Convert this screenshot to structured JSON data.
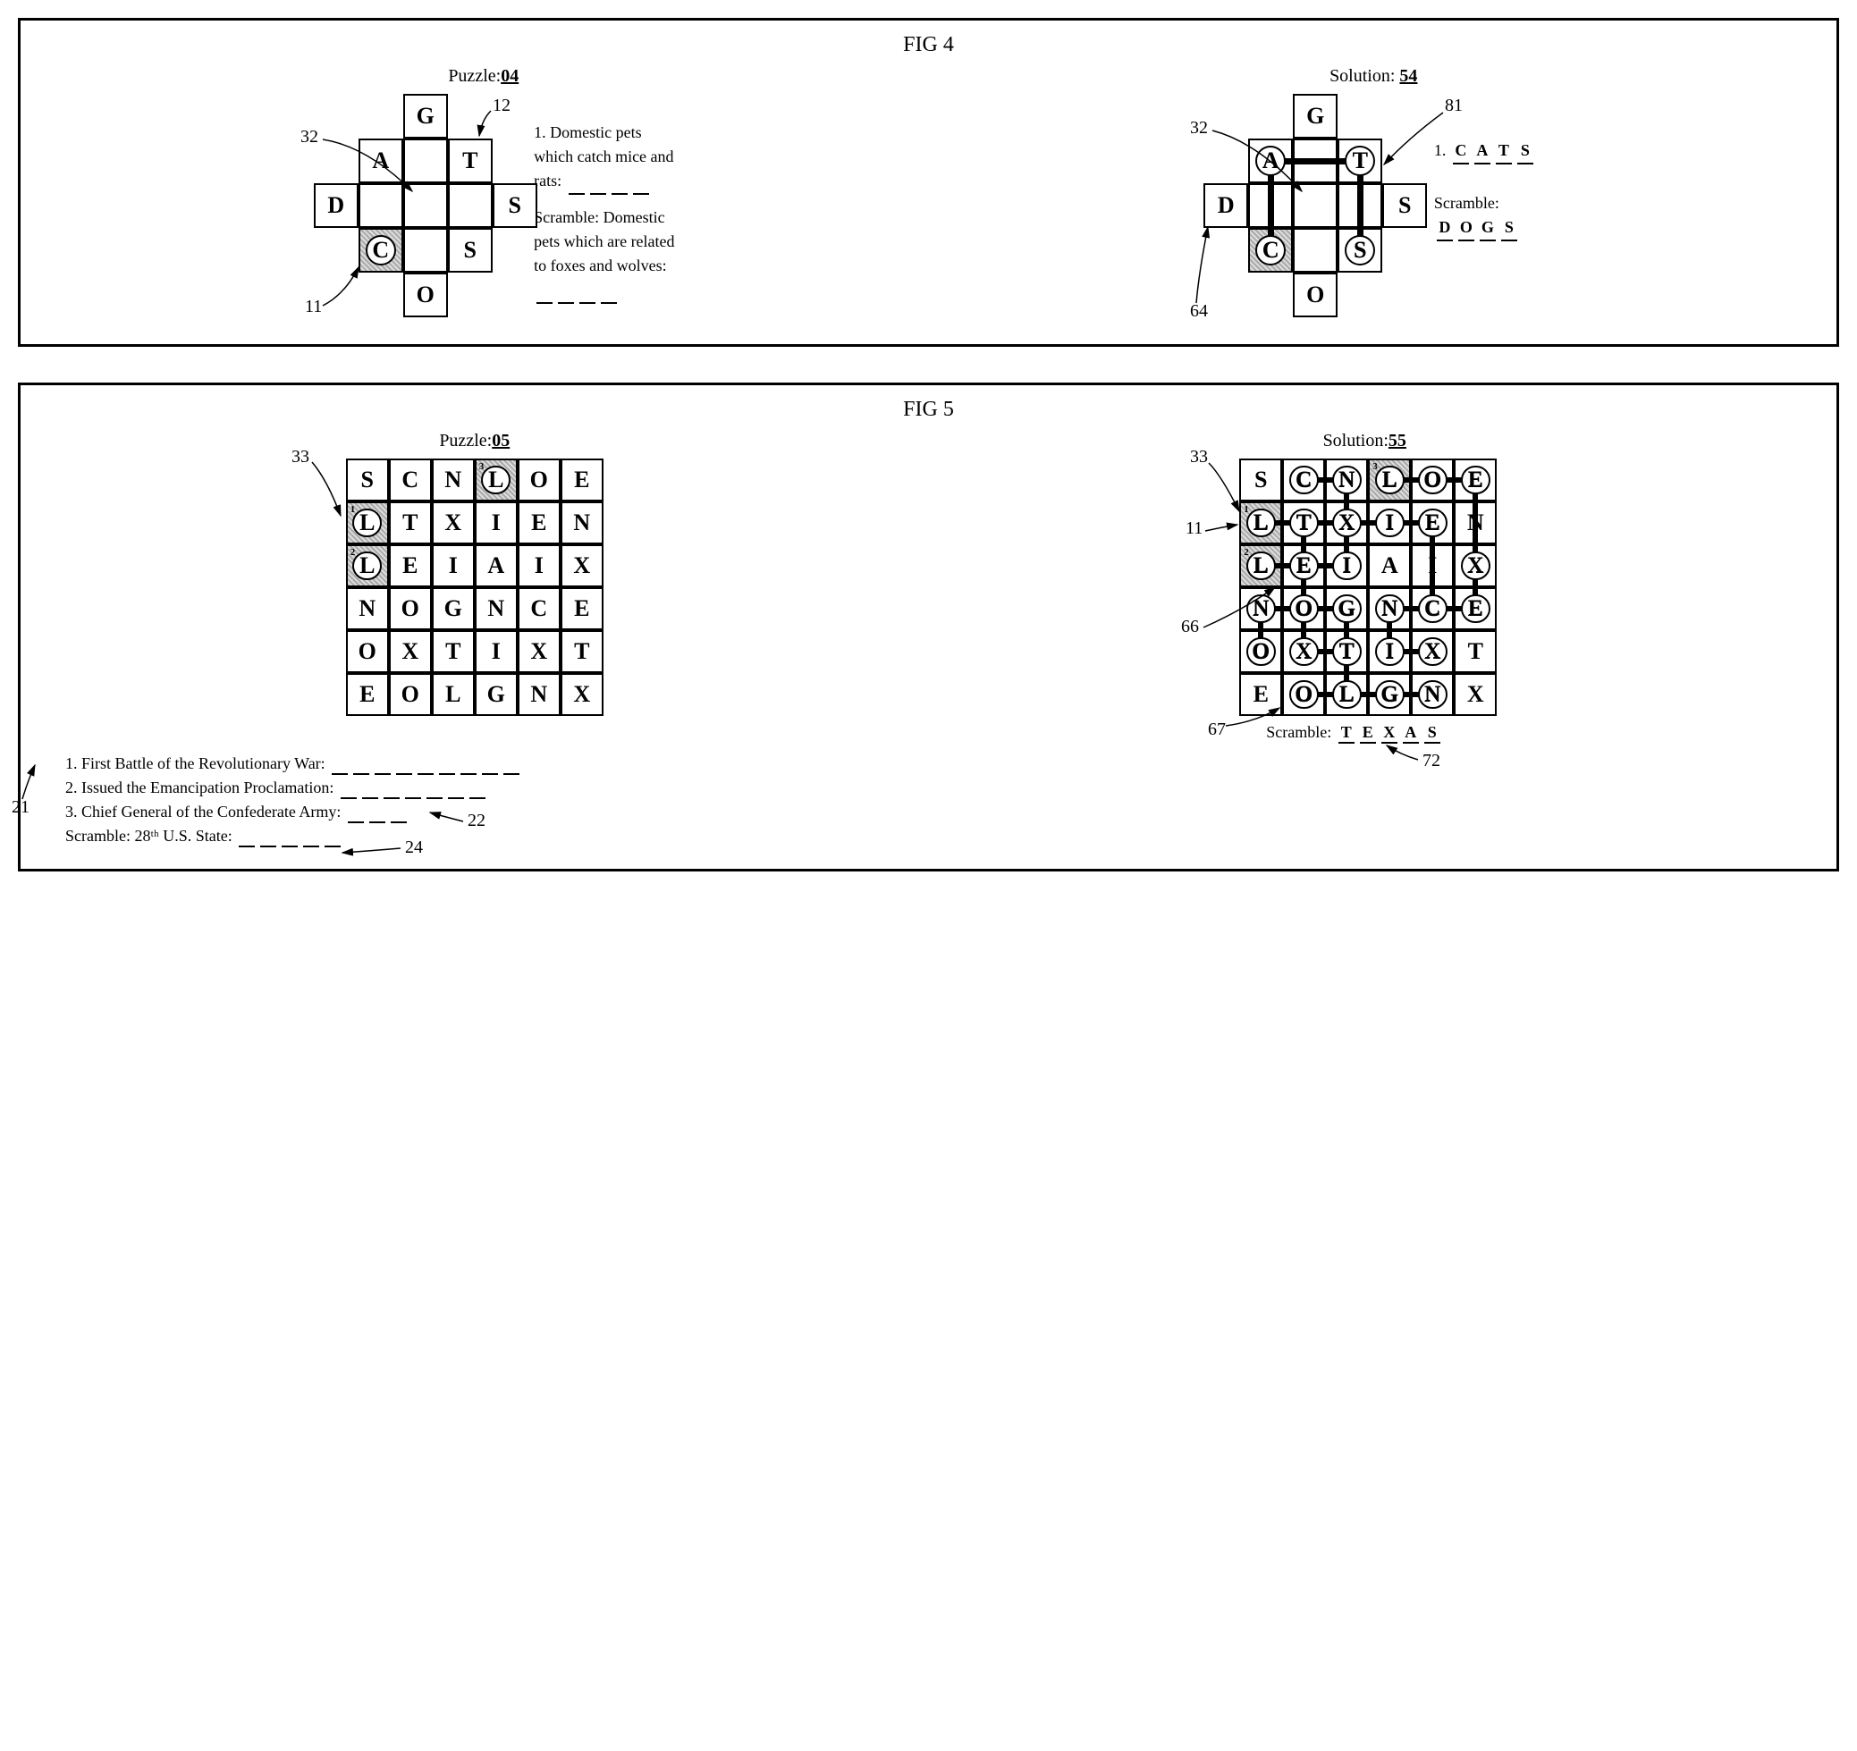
{
  "fig4": {
    "title": "FIG 4",
    "puzzle_label_prefix": "Puzzle:",
    "puzzle_number": "04",
    "solution_label_prefix": "Solution:",
    "solution_number": "54",
    "cell_size": 50,
    "cross_layout": [
      {
        "r": 0,
        "c": 2,
        "letter": "G"
      },
      {
        "r": 1,
        "c": 1,
        "letter": "A"
      },
      {
        "r": 1,
        "c": 3,
        "letter": "T"
      },
      {
        "r": 2,
        "c": 0,
        "letter": "D"
      },
      {
        "r": 2,
        "c": 4,
        "letter": "S"
      },
      {
        "r": 3,
        "c": 1,
        "letter": "C",
        "shaded": true,
        "circled": true
      },
      {
        "r": 3,
        "c": 3,
        "letter": "S"
      },
      {
        "r": 4,
        "c": 2,
        "letter": "O"
      }
    ],
    "blank_positions": [
      {
        "r": 1,
        "c": 2
      },
      {
        "r": 2,
        "c": 1
      },
      {
        "r": 2,
        "c": 2
      },
      {
        "r": 2,
        "c": 3
      },
      {
        "r": 3,
        "c": 2
      }
    ],
    "clue1_label": "1. Domestic pets which catch mice and rats:",
    "clue1_blanks": 4,
    "scramble_label": "Scramble: Domestic pets which are related to foxes and wolves:",
    "scramble_blanks": 4,
    "solution": {
      "circled": [
        {
          "r": 1,
          "c": 1
        },
        {
          "r": 1,
          "c": 3
        },
        {
          "r": 3,
          "c": 1
        },
        {
          "r": 3,
          "c": 3
        }
      ],
      "path_edges": [
        {
          "from": {
            "r": 3,
            "c": 1
          },
          "to": {
            "r": 1,
            "c": 1
          }
        },
        {
          "from": {
            "r": 1,
            "c": 1
          },
          "to": {
            "r": 1,
            "c": 3
          }
        },
        {
          "from": {
            "r": 1,
            "c": 3
          },
          "to": {
            "r": 3,
            "c": 3
          }
        }
      ],
      "answer1_label": "1.",
      "answer1": [
        "C",
        "A",
        "T",
        "S"
      ],
      "scramble_label": "Scramble:",
      "scramble_answer": [
        "D",
        "O",
        "G",
        "S"
      ]
    },
    "callouts": {
      "c32": "32",
      "c12": "12",
      "c11": "11",
      "s32": "32",
      "s81": "81",
      "s64": "64"
    }
  },
  "fig5": {
    "title": "FIG 5",
    "puzzle_label_prefix": "Puzzle:",
    "puzzle_number": "05",
    "solution_label_prefix": "Solution:",
    "solution_number": "55",
    "cell_size": 48,
    "cols": 6,
    "rows": 6,
    "grid": [
      [
        "S",
        "C",
        "N",
        "L",
        "O",
        "E"
      ],
      [
        "L",
        "T",
        "X",
        "I",
        "E",
        "N"
      ],
      [
        "L",
        "E",
        "I",
        "A",
        "I",
        "X"
      ],
      [
        "N",
        "O",
        "G",
        "N",
        "C",
        "E"
      ],
      [
        "O",
        "X",
        "T",
        "I",
        "X",
        "T"
      ],
      [
        "E",
        "O",
        "L",
        "G",
        "N",
        "X"
      ]
    ],
    "shaded": [
      {
        "r": 0,
        "c": 3
      },
      {
        "r": 1,
        "c": 0
      },
      {
        "r": 2,
        "c": 0
      }
    ],
    "start_circles": [
      {
        "r": 0,
        "c": 3,
        "num": "3"
      },
      {
        "r": 1,
        "c": 0,
        "num": "1"
      },
      {
        "r": 2,
        "c": 0,
        "num": "2"
      }
    ],
    "solution": {
      "circled": [
        {
          "r": 0,
          "c": 1
        },
        {
          "r": 0,
          "c": 2
        },
        {
          "r": 0,
          "c": 3
        },
        {
          "r": 0,
          "c": 4
        },
        {
          "r": 0,
          "c": 5
        },
        {
          "r": 1,
          "c": 0
        },
        {
          "r": 1,
          "c": 1
        },
        {
          "r": 1,
          "c": 2
        },
        {
          "r": 1,
          "c": 3
        },
        {
          "r": 1,
          "c": 4
        },
        {
          "r": 2,
          "c": 0
        },
        {
          "r": 2,
          "c": 1
        },
        {
          "r": 2,
          "c": 2
        },
        {
          "r": 2,
          "c": 5
        },
        {
          "r": 3,
          "c": 0
        },
        {
          "r": 3,
          "c": 1
        },
        {
          "r": 3,
          "c": 2
        },
        {
          "r": 3,
          "c": 3
        },
        {
          "r": 3,
          "c": 4
        },
        {
          "r": 3,
          "c": 5
        },
        {
          "r": 4,
          "c": 0
        },
        {
          "r": 4,
          "c": 1
        },
        {
          "r": 4,
          "c": 2
        },
        {
          "r": 4,
          "c": 3
        },
        {
          "r": 4,
          "c": 4
        },
        {
          "r": 5,
          "c": 1
        },
        {
          "r": 5,
          "c": 2
        },
        {
          "r": 5,
          "c": 3
        },
        {
          "r": 5,
          "c": 4
        }
      ],
      "path_edges": [
        {
          "from": {
            "r": 1,
            "c": 0
          },
          "to": {
            "r": 1,
            "c": 4
          }
        },
        {
          "from": {
            "r": 1,
            "c": 1
          },
          "to": {
            "r": 4,
            "c": 1
          }
        },
        {
          "from": {
            "r": 4,
            "c": 1
          },
          "to": {
            "r": 4,
            "c": 2
          }
        },
        {
          "from": {
            "r": 4,
            "c": 0
          },
          "to": {
            "r": 3,
            "c": 0
          }
        },
        {
          "from": {
            "r": 3,
            "c": 0
          },
          "to": {
            "r": 3,
            "c": 2
          }
        },
        {
          "from": {
            "r": 3,
            "c": 2
          },
          "to": {
            "r": 5,
            "c": 2
          }
        },
        {
          "from": {
            "r": 5,
            "c": 1
          },
          "to": {
            "r": 5,
            "c": 4
          }
        },
        {
          "from": {
            "r": 3,
            "c": 3
          },
          "to": {
            "r": 4,
            "c": 3
          }
        },
        {
          "from": {
            "r": 4,
            "c": 3
          },
          "to": {
            "r": 4,
            "c": 4
          }
        },
        {
          "from": {
            "r": 2,
            "c": 0
          },
          "to": {
            "r": 2,
            "c": 2
          }
        },
        {
          "from": {
            "r": 2,
            "c": 2
          },
          "to": {
            "r": 0,
            "c": 2
          }
        },
        {
          "from": {
            "r": 0,
            "c": 1
          },
          "to": {
            "r": 0,
            "c": 2
          }
        },
        {
          "from": {
            "r": 3,
            "c": 4
          },
          "to": {
            "r": 1,
            "c": 4
          }
        },
        {
          "from": {
            "r": 0,
            "c": 3
          },
          "to": {
            "r": 0,
            "c": 5
          }
        },
        {
          "from": {
            "r": 0,
            "c": 5
          },
          "to": {
            "r": 3,
            "c": 5
          }
        },
        {
          "from": {
            "r": 3,
            "c": 5
          },
          "to": {
            "r": 3,
            "c": 3
          }
        }
      ],
      "scramble_label": "Scramble:",
      "scramble_answer": [
        "T",
        "E",
        "X",
        "A",
        "S"
      ]
    },
    "clue1": "1. First Battle of the Revolutionary War:",
    "clue1_blanks": 9,
    "clue2": "2. Issued the Emancipation Proclamation:",
    "clue2_blanks": 7,
    "clue3": "3. Chief General of the Confederate Army:",
    "clue3_blanks": 3,
    "scramble_clue": "Scramble: 28ᵗʰ U.S. State:",
    "scramble_blanks": 5,
    "callouts": {
      "c33": "33",
      "c21": "21",
      "c22": "22",
      "c24": "24",
      "s33": "33",
      "s11": "11",
      "s66": "66",
      "s67": "67",
      "s72": "72"
    }
  },
  "colors": {
    "line": "#000000",
    "shade_a": "#aaaaaa",
    "shade_b": "#dddddd"
  }
}
